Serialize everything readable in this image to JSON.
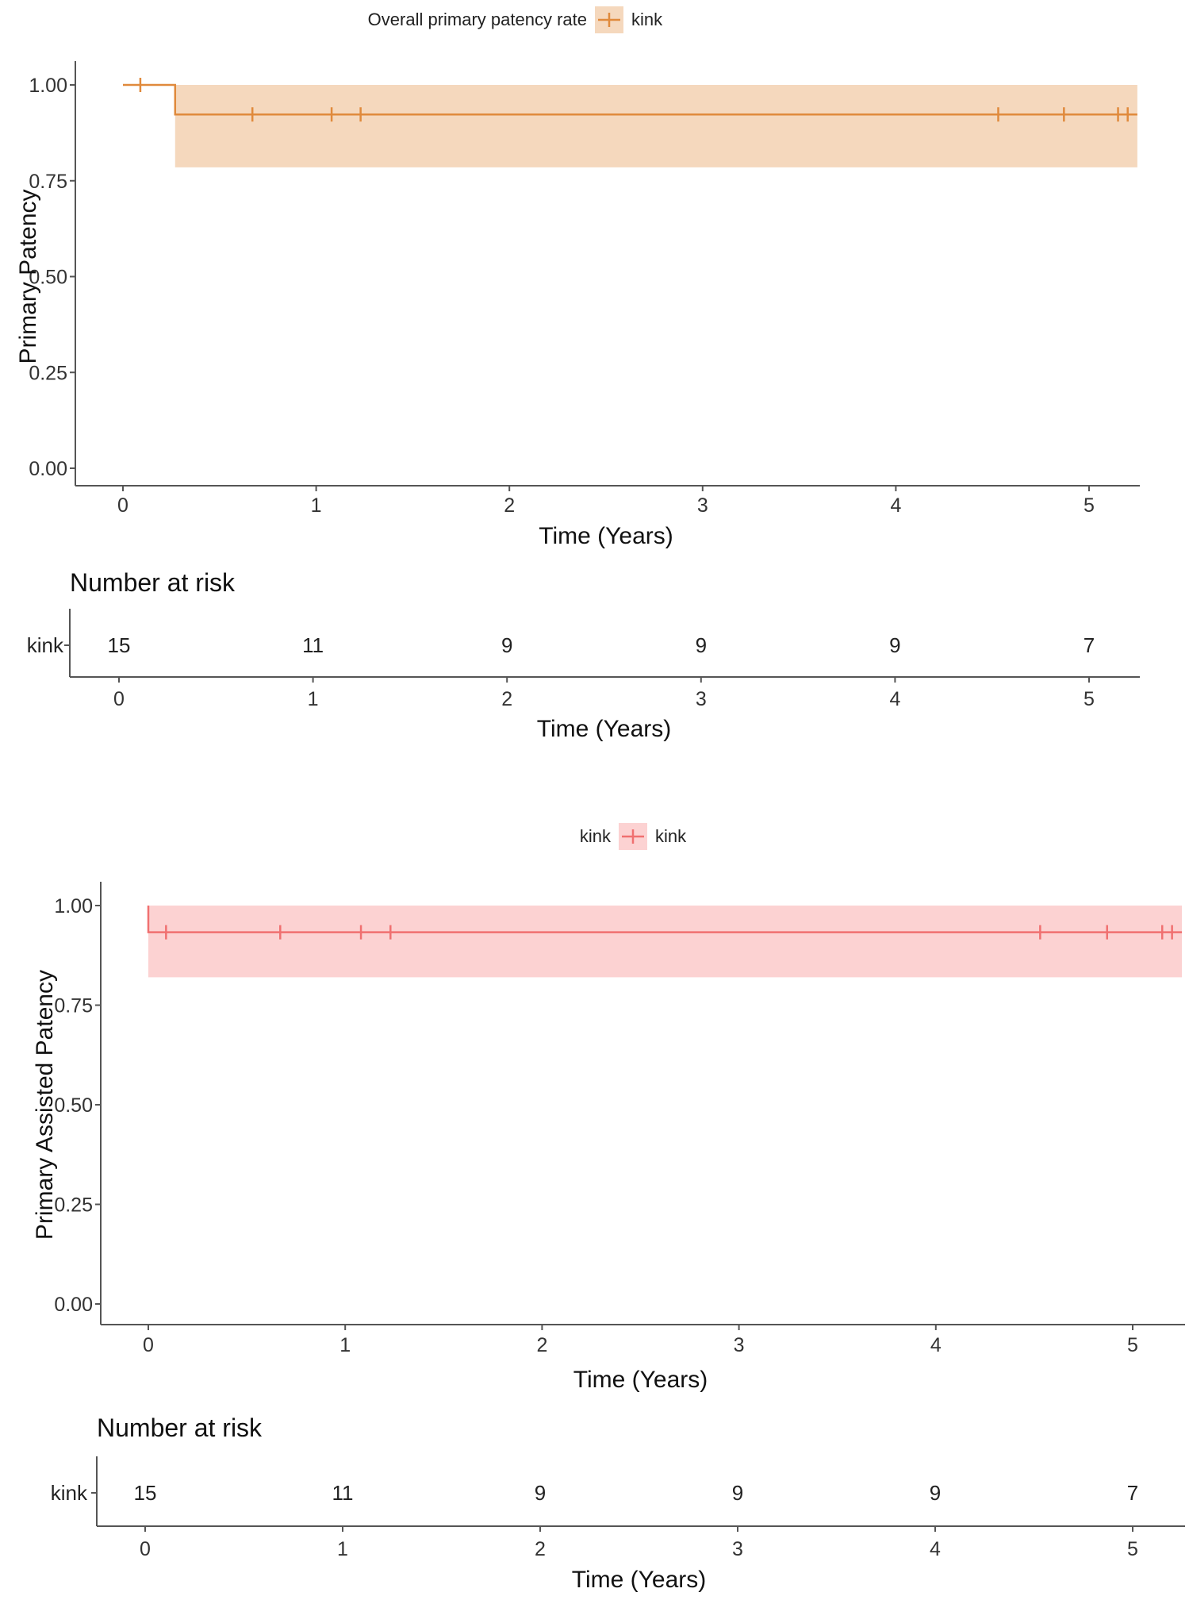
{
  "chart_data": [
    {
      "type": "line",
      "subtype": "kaplan-meier",
      "legend": {
        "title": "Overall primary patency rate",
        "entries": [
          "kink"
        ],
        "placement": "top"
      },
      "color": "#e08a3c",
      "band_color": "#f5d8bd",
      "ylabel": "Primary Patency",
      "xlabel": "Time (Years)",
      "xlim": [
        -0.25,
        5.25
      ],
      "ylim": [
        0,
        1
      ],
      "xticks": [
        0,
        1,
        2,
        3,
        4,
        5
      ],
      "yticks": [
        0.0,
        0.25,
        0.5,
        0.75,
        1.0
      ],
      "ytick_labels": [
        "0.00",
        "0.25",
        "0.50",
        "0.75",
        "1.00"
      ],
      "step": {
        "x": [
          0,
          0.27,
          5.25
        ],
        "y": [
          1.0,
          0.923,
          0.923
        ]
      },
      "ci_band": {
        "x": [
          0.27,
          5.25
        ],
        "lower": 0.785,
        "upper": 1.0
      },
      "censor_marks": [
        {
          "x": 0.09,
          "y": 1.0
        },
        {
          "x": 0.67,
          "y": 0.923
        },
        {
          "x": 1.08,
          "y": 0.923
        },
        {
          "x": 1.23,
          "y": 0.923
        },
        {
          "x": 4.53,
          "y": 0.923
        },
        {
          "x": 4.87,
          "y": 0.923
        },
        {
          "x": 5.15,
          "y": 0.923
        },
        {
          "x": 5.2,
          "y": 0.923
        }
      ],
      "risk_table": {
        "title": "Number at risk",
        "strata_label": "kink",
        "times": [
          0,
          1,
          2,
          3,
          4,
          5
        ],
        "counts": [
          15,
          11,
          9,
          9,
          9,
          7
        ],
        "xlabel": "Time (Years)"
      }
    },
    {
      "type": "line",
      "subtype": "kaplan-meier",
      "legend": {
        "title": "kink",
        "entries": [
          "kink"
        ],
        "placement": "top"
      },
      "color": "#f07070",
      "band_color": "#fcd2d2",
      "ylabel": "Primary Assisted Patency",
      "xlabel": "Time (Years)",
      "xlim": [
        -0.25,
        5.25
      ],
      "ylim": [
        0,
        1
      ],
      "xticks": [
        0,
        1,
        2,
        3,
        4,
        5
      ],
      "yticks": [
        0.0,
        0.25,
        0.5,
        0.75,
        1.0
      ],
      "ytick_labels": [
        "0.00",
        "0.25",
        "0.50",
        "0.75",
        "1.00"
      ],
      "step": {
        "x": [
          0,
          0.0,
          5.25
        ],
        "y": [
          1.0,
          0.933,
          0.933
        ]
      },
      "ci_band": {
        "x": [
          0.0,
          5.25
        ],
        "lower": 0.82,
        "upper": 1.0
      },
      "censor_marks": [
        {
          "x": 0.09,
          "y": 0.933
        },
        {
          "x": 0.67,
          "y": 0.933
        },
        {
          "x": 1.08,
          "y": 0.933
        },
        {
          "x": 1.23,
          "y": 0.933
        },
        {
          "x": 4.53,
          "y": 0.933
        },
        {
          "x": 4.87,
          "y": 0.933
        },
        {
          "x": 5.15,
          "y": 0.933
        },
        {
          "x": 5.2,
          "y": 0.933
        }
      ],
      "risk_table": {
        "title": "Number at risk",
        "strata_label": "kink",
        "times": [
          0,
          1,
          2,
          3,
          4,
          5
        ],
        "counts": [
          15,
          11,
          9,
          9,
          9,
          7
        ],
        "xlabel": "Time (Years)"
      }
    }
  ]
}
